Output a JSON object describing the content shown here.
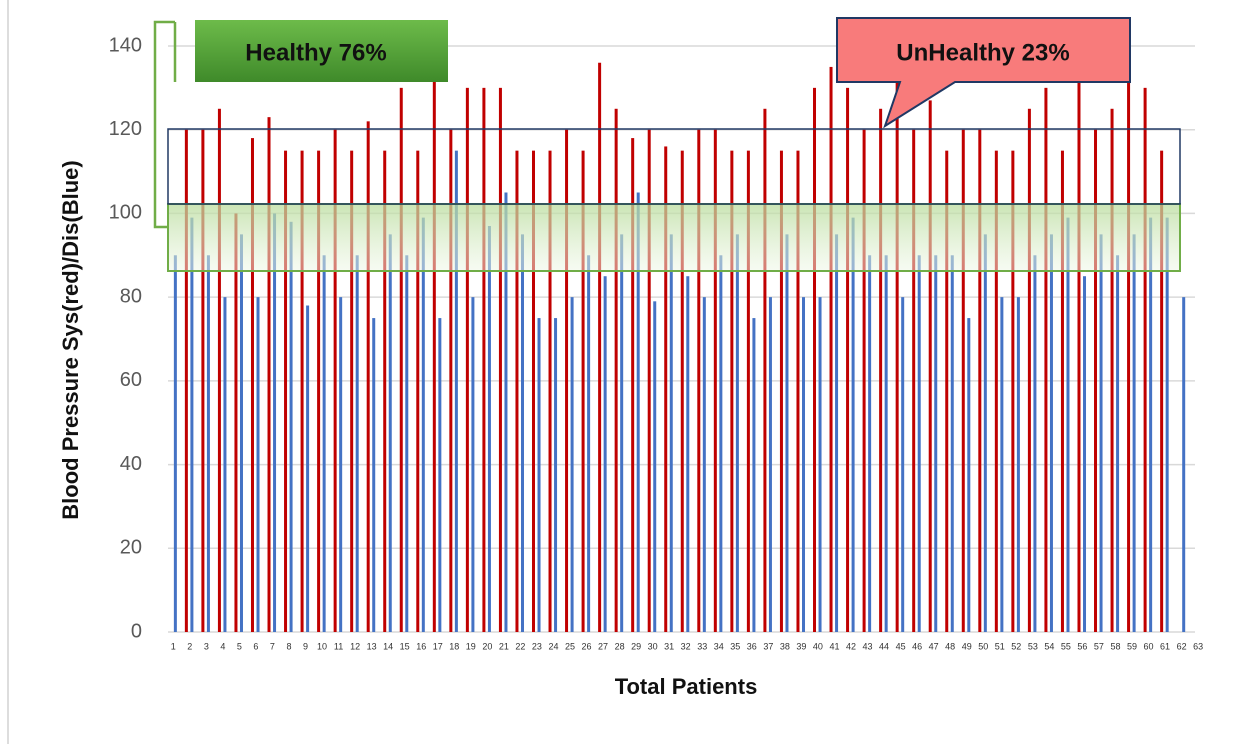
{
  "chart_data": {
    "type": "bar",
    "y_label": "Blood Pressure Sys(red)/Dis(Blue)",
    "x_label": "Total Patients",
    "annotations": [
      "Healthy 76%",
      "UnHealthy 23%"
    ],
    "categories": [
      "1",
      "2",
      "3",
      "4",
      "5",
      "6",
      "7",
      "8",
      "9",
      "10",
      "11",
      "12",
      "13",
      "14",
      "15",
      "16",
      "17",
      "18",
      "19",
      "20",
      "21",
      "22",
      "23",
      "24",
      "25",
      "26",
      "27",
      "28",
      "29",
      "30",
      "31",
      "32",
      "33",
      "34",
      "35",
      "36",
      "37",
      "38",
      "39",
      "40",
      "41",
      "42",
      "43",
      "44",
      "45",
      "46",
      "47",
      "48",
      "49",
      "50",
      "51",
      "52",
      "53",
      "54",
      "55",
      "56",
      "57",
      "58",
      "59",
      "60",
      "61",
      "62",
      "63"
    ],
    "series": [
      {
        "color": "#4472c4",
        "values": [
          90,
          99,
          90,
          80,
          95,
          80,
          100,
          98,
          78,
          90,
          80,
          90,
          75,
          95,
          90,
          99,
          75,
          115,
          80,
          97,
          105,
          95,
          75,
          75,
          80,
          90,
          85,
          95,
          105,
          79,
          95,
          85,
          80,
          90,
          95,
          75,
          80,
          95,
          80,
          80,
          95,
          99,
          90,
          90,
          80,
          90,
          90,
          90,
          75,
          95,
          80,
          80,
          90,
          95,
          99,
          85,
          95,
          90,
          95,
          99,
          99,
          80,
          null
        ]
      },
      {
        "color": "#c00000",
        "values": [
          120,
          120,
          125,
          100,
          118,
          123,
          115,
          115,
          115,
          120,
          115,
          122,
          115,
          130,
          115,
          132,
          120,
          130,
          130,
          130,
          115,
          115,
          115,
          120,
          115,
          136,
          125,
          118,
          120,
          116,
          115,
          120,
          120,
          115,
          115,
          125,
          115,
          115,
          130,
          135,
          130,
          120,
          125,
          135,
          120,
          127,
          115,
          120,
          120,
          115,
          115,
          125,
          130,
          115,
          135,
          120,
          125,
          135,
          130,
          115,
          null,
          null,
          null
        ]
      }
    ],
    "ylim": [
      0,
      140
    ],
    "yticks": [
      0,
      20,
      40,
      60,
      80,
      100,
      120,
      140
    ],
    "grid": true
  }
}
